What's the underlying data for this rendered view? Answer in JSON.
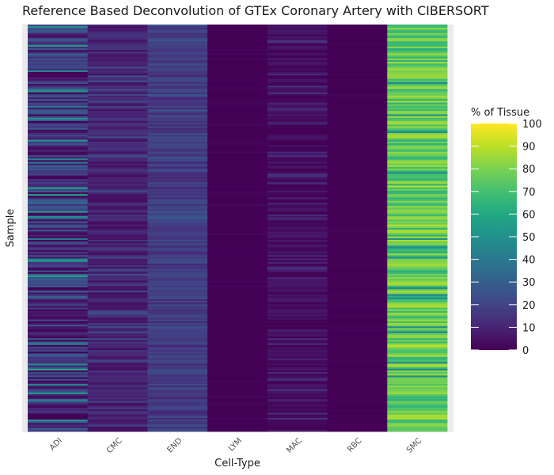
{
  "chart_data": {
    "type": "heatmap",
    "title": "Reference Based Deconvolution of GTEx Coronary Artery with CIBERSORT",
    "xlabel": "Cell-Type",
    "ylabel": "Sample",
    "categories": [
      "ADI",
      "CMC",
      "END",
      "LYM",
      "MAC",
      "RBC",
      "SMC"
    ],
    "value_range": [
      0,
      100
    ],
    "colorscale": "viridis",
    "legend": {
      "title": "% of Tissue",
      "ticks": [
        0,
        10,
        20,
        30,
        40,
        50,
        60,
        70,
        80,
        90,
        100
      ],
      "position": "right"
    },
    "approx_sample_count": 240,
    "column_levels": [
      {
        "name": "ADI",
        "typical": 15,
        "low": 0,
        "high": 60
      },
      {
        "name": "CMC",
        "typical": 10,
        "low": 3,
        "high": 25
      },
      {
        "name": "END",
        "typical": 18,
        "low": 10,
        "high": 27
      },
      {
        "name": "LYM",
        "typical": 0,
        "low": 0,
        "high": 2
      },
      {
        "name": "MAC",
        "typical": 3,
        "low": 0,
        "high": 15
      },
      {
        "name": "RBC",
        "typical": 0,
        "low": 0,
        "high": 1
      },
      {
        "name": "SMC",
        "typical": 75,
        "low": 45,
        "high": 90
      }
    ],
    "colors": {
      "panel_background": "#ebebeb",
      "viridis_low": "#440154",
      "viridis_high": "#fde725"
    }
  }
}
